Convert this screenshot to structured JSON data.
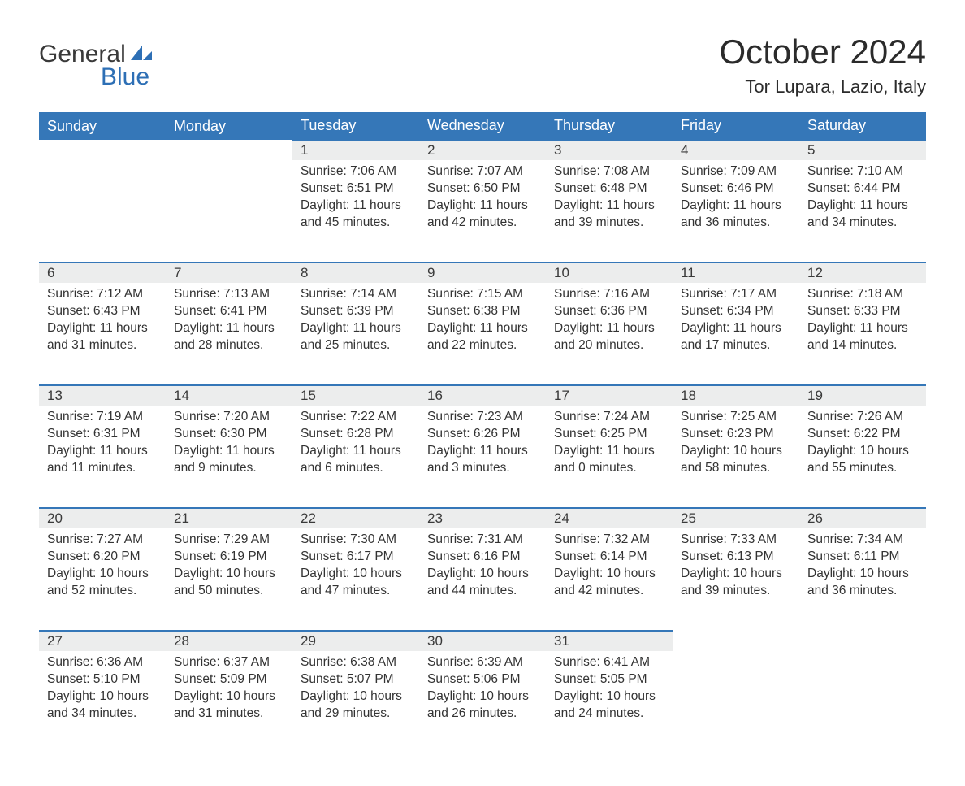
{
  "brand": {
    "word1": "General",
    "word2": "Blue",
    "accent_color": "#2d6fb5"
  },
  "title": "October 2024",
  "location": "Tor Lupara, Lazio, Italy",
  "colors": {
    "header_bg": "#3577b8",
    "header_text": "#ffffff",
    "daynum_bg": "#eceded",
    "day_border": "#3577b8",
    "body_text": "#333333",
    "page_bg": "#ffffff"
  },
  "typography": {
    "title_fontsize": 42,
    "location_fontsize": 22,
    "header_fontsize": 18,
    "cell_fontsize": 15.5
  },
  "layout": {
    "columns": 7,
    "weeks": 5,
    "aspect_ratio": "1188x918"
  },
  "day_headers": [
    "Sunday",
    "Monday",
    "Tuesday",
    "Wednesday",
    "Thursday",
    "Friday",
    "Saturday"
  ],
  "weeks": [
    [
      null,
      null,
      {
        "n": "1",
        "sunrise": "7:06 AM",
        "sunset": "6:51 PM",
        "daylight": "11 hours and 45 minutes."
      },
      {
        "n": "2",
        "sunrise": "7:07 AM",
        "sunset": "6:50 PM",
        "daylight": "11 hours and 42 minutes."
      },
      {
        "n": "3",
        "sunrise": "7:08 AM",
        "sunset": "6:48 PM",
        "daylight": "11 hours and 39 minutes."
      },
      {
        "n": "4",
        "sunrise": "7:09 AM",
        "sunset": "6:46 PM",
        "daylight": "11 hours and 36 minutes."
      },
      {
        "n": "5",
        "sunrise": "7:10 AM",
        "sunset": "6:44 PM",
        "daylight": "11 hours and 34 minutes."
      }
    ],
    [
      {
        "n": "6",
        "sunrise": "7:12 AM",
        "sunset": "6:43 PM",
        "daylight": "11 hours and 31 minutes."
      },
      {
        "n": "7",
        "sunrise": "7:13 AM",
        "sunset": "6:41 PM",
        "daylight": "11 hours and 28 minutes."
      },
      {
        "n": "8",
        "sunrise": "7:14 AM",
        "sunset": "6:39 PM",
        "daylight": "11 hours and 25 minutes."
      },
      {
        "n": "9",
        "sunrise": "7:15 AM",
        "sunset": "6:38 PM",
        "daylight": "11 hours and 22 minutes."
      },
      {
        "n": "10",
        "sunrise": "7:16 AM",
        "sunset": "6:36 PM",
        "daylight": "11 hours and 20 minutes."
      },
      {
        "n": "11",
        "sunrise": "7:17 AM",
        "sunset": "6:34 PM",
        "daylight": "11 hours and 17 minutes."
      },
      {
        "n": "12",
        "sunrise": "7:18 AM",
        "sunset": "6:33 PM",
        "daylight": "11 hours and 14 minutes."
      }
    ],
    [
      {
        "n": "13",
        "sunrise": "7:19 AM",
        "sunset": "6:31 PM",
        "daylight": "11 hours and 11 minutes."
      },
      {
        "n": "14",
        "sunrise": "7:20 AM",
        "sunset": "6:30 PM",
        "daylight": "11 hours and 9 minutes."
      },
      {
        "n": "15",
        "sunrise": "7:22 AM",
        "sunset": "6:28 PM",
        "daylight": "11 hours and 6 minutes."
      },
      {
        "n": "16",
        "sunrise": "7:23 AM",
        "sunset": "6:26 PM",
        "daylight": "11 hours and 3 minutes."
      },
      {
        "n": "17",
        "sunrise": "7:24 AM",
        "sunset": "6:25 PM",
        "daylight": "11 hours and 0 minutes."
      },
      {
        "n": "18",
        "sunrise": "7:25 AM",
        "sunset": "6:23 PM",
        "daylight": "10 hours and 58 minutes."
      },
      {
        "n": "19",
        "sunrise": "7:26 AM",
        "sunset": "6:22 PM",
        "daylight": "10 hours and 55 minutes."
      }
    ],
    [
      {
        "n": "20",
        "sunrise": "7:27 AM",
        "sunset": "6:20 PM",
        "daylight": "10 hours and 52 minutes."
      },
      {
        "n": "21",
        "sunrise": "7:29 AM",
        "sunset": "6:19 PM",
        "daylight": "10 hours and 50 minutes."
      },
      {
        "n": "22",
        "sunrise": "7:30 AM",
        "sunset": "6:17 PM",
        "daylight": "10 hours and 47 minutes."
      },
      {
        "n": "23",
        "sunrise": "7:31 AM",
        "sunset": "6:16 PM",
        "daylight": "10 hours and 44 minutes."
      },
      {
        "n": "24",
        "sunrise": "7:32 AM",
        "sunset": "6:14 PM",
        "daylight": "10 hours and 42 minutes."
      },
      {
        "n": "25",
        "sunrise": "7:33 AM",
        "sunset": "6:13 PM",
        "daylight": "10 hours and 39 minutes."
      },
      {
        "n": "26",
        "sunrise": "7:34 AM",
        "sunset": "6:11 PM",
        "daylight": "10 hours and 36 minutes."
      }
    ],
    [
      {
        "n": "27",
        "sunrise": "6:36 AM",
        "sunset": "5:10 PM",
        "daylight": "10 hours and 34 minutes."
      },
      {
        "n": "28",
        "sunrise": "6:37 AM",
        "sunset": "5:09 PM",
        "daylight": "10 hours and 31 minutes."
      },
      {
        "n": "29",
        "sunrise": "6:38 AM",
        "sunset": "5:07 PM",
        "daylight": "10 hours and 29 minutes."
      },
      {
        "n": "30",
        "sunrise": "6:39 AM",
        "sunset": "5:06 PM",
        "daylight": "10 hours and 26 minutes."
      },
      {
        "n": "31",
        "sunrise": "6:41 AM",
        "sunset": "5:05 PM",
        "daylight": "10 hours and 24 minutes."
      },
      null,
      null
    ]
  ],
  "labels": {
    "sunrise": "Sunrise:",
    "sunset": "Sunset:",
    "daylight": "Daylight:"
  }
}
